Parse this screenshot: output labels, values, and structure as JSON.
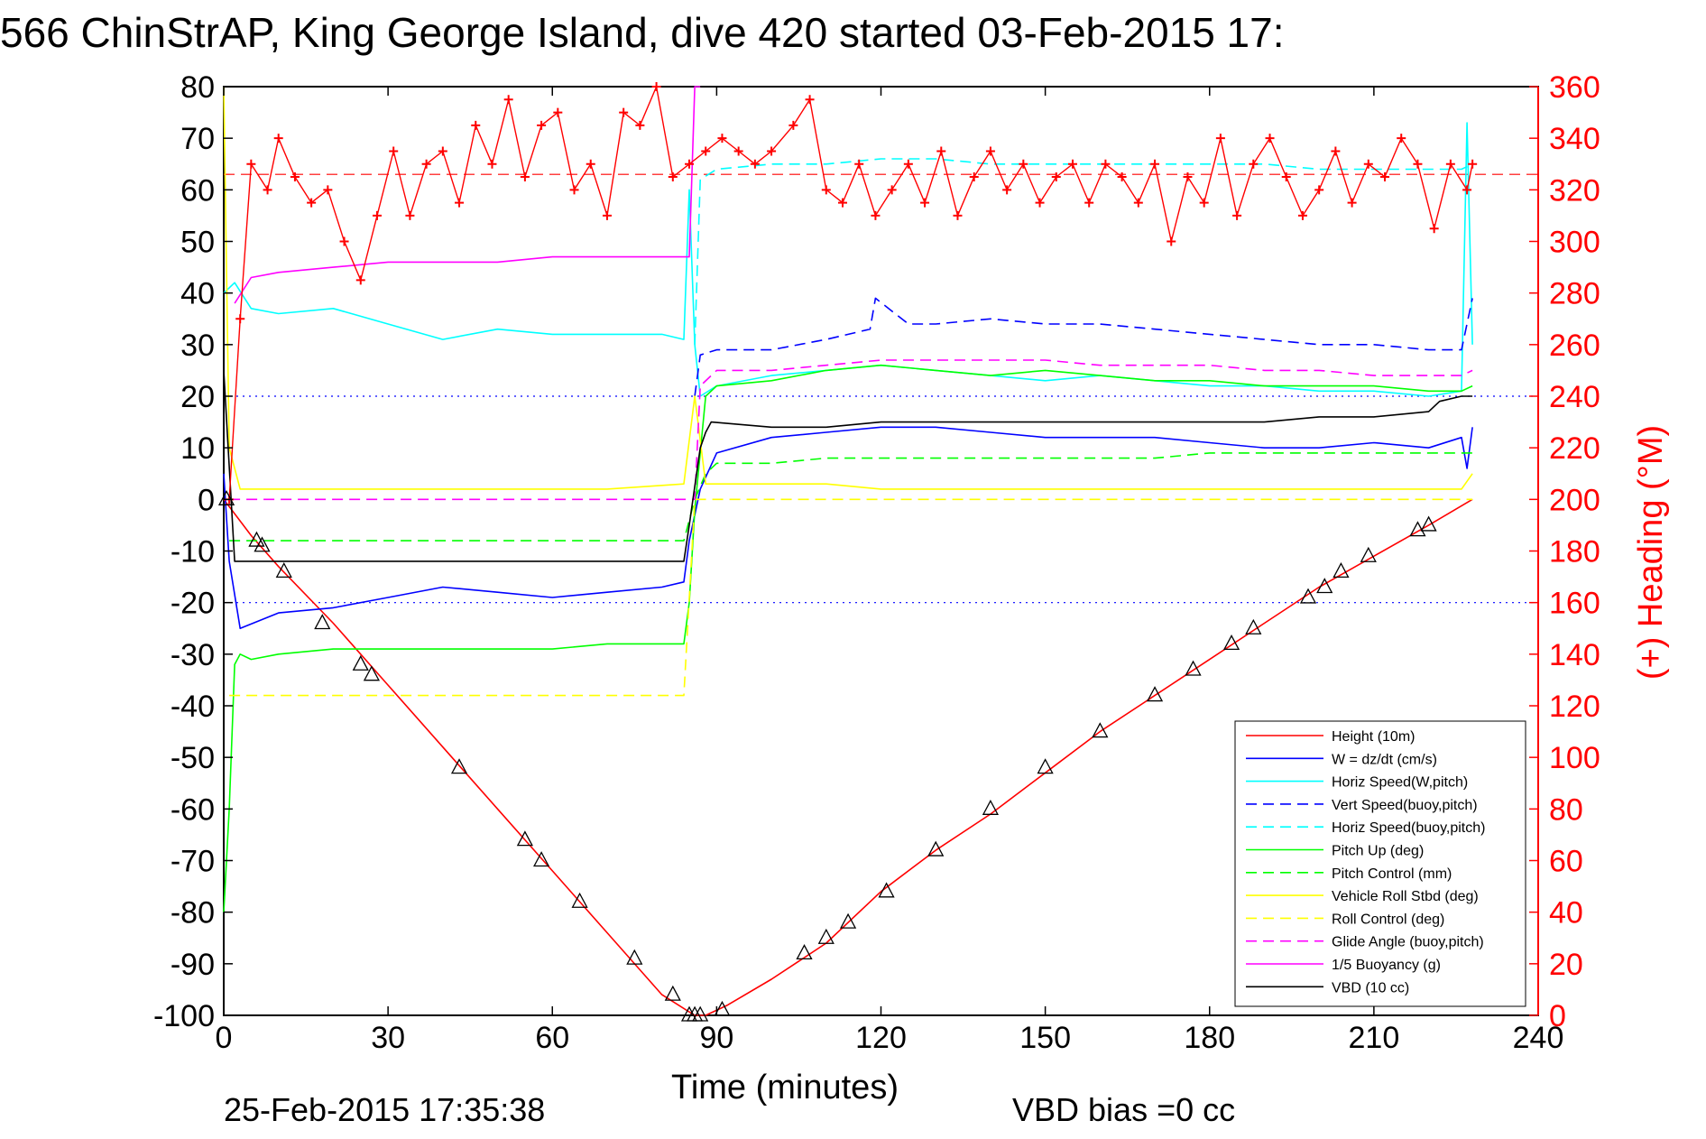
{
  "chart_data": {
    "type": "line",
    "title": "566 ChinStrAP, King George Island, dive 420 started 03-Feb-2015 17:",
    "xlabel": "Time (minutes)",
    "ylabel": "",
    "y2label": "(+) Heading (°M)",
    "footer_left": "25-Feb-2015 17:35:38",
    "footer_right": "VBD bias =0 cc",
    "xlim": [
      0,
      240
    ],
    "ylim": [
      -100,
      80
    ],
    "y2lim": [
      0,
      360
    ],
    "xticks": [
      "0",
      "30",
      "60",
      "90",
      "120",
      "150",
      "180",
      "210",
      "240"
    ],
    "yticks": [
      "80",
      "70",
      "60",
      "50",
      "40",
      "30",
      "20",
      "10",
      "0",
      "-10",
      "-20",
      "-30",
      "-40",
      "-50",
      "-60",
      "-70",
      "-80",
      "-90",
      "-100"
    ],
    "y2ticks": [
      "360",
      "340",
      "320",
      "300",
      "280",
      "260",
      "240",
      "220",
      "200",
      "180",
      "160",
      "140",
      "120",
      "100",
      "80",
      "60",
      "40",
      "20",
      "0"
    ],
    "legend_position": "bottom-right",
    "colors": {
      "height": "#ff0000",
      "w": "#0000ff",
      "horiz_w": "#00ffff",
      "vert_buoy": "#0000ff",
      "horiz_buoy": "#00ffff",
      "pitch": "#00ff00",
      "pitch_ctrl": "#00ff00",
      "roll": "#ffff00",
      "roll_ctrl": "#ffff00",
      "glide": "#ff00ff",
      "buoyancy": "#ff00ff",
      "vbd": "#000000",
      "heading": "#ff0000",
      "axis": "#000000",
      "axis2": "#ff0000"
    },
    "series": [
      {
        "name": "Height (10m)",
        "color": "#ff0000",
        "dash": "none",
        "x": [
          0,
          5,
          10,
          20,
          30,
          40,
          50,
          60,
          70,
          80,
          86,
          88,
          92,
          100,
          110,
          120,
          130,
          140,
          150,
          160,
          170,
          180,
          190,
          200,
          210,
          220,
          228
        ],
        "y": [
          0,
          -7,
          -13,
          -24,
          -36,
          -48,
          -60,
          -72,
          -84,
          -96,
          -100,
          -100,
          -98,
          -93,
          -86,
          -76,
          -68,
          -61,
          -53,
          -45,
          -38,
          -31,
          -24,
          -17,
          -11,
          -5,
          0
        ]
      },
      {
        "name": "W = dz/dt (cm/s)",
        "color": "#0000ff",
        "dash": "none",
        "x": [
          0,
          1,
          3,
          10,
          20,
          30,
          40,
          50,
          60,
          70,
          80,
          84,
          85,
          87,
          90,
          100,
          110,
          120,
          130,
          140,
          150,
          160,
          170,
          180,
          190,
          200,
          210,
          220,
          226,
          227,
          228
        ],
        "y": [
          5,
          -12,
          -25,
          -22,
          -21,
          -19,
          -17,
          -18,
          -19,
          -18,
          -17,
          -16,
          -8,
          2,
          9,
          12,
          13,
          14,
          14,
          13,
          12,
          12,
          12,
          11,
          10,
          10,
          11,
          10,
          12,
          6,
          14
        ]
      },
      {
        "name": "Horiz Speed(W,pitch)",
        "color": "#00ffff",
        "dash": "none",
        "x": [
          0,
          2,
          5,
          10,
          20,
          30,
          40,
          50,
          60,
          70,
          80,
          84,
          85,
          86,
          87,
          90,
          100,
          110,
          120,
          130,
          140,
          150,
          160,
          170,
          180,
          190,
          200,
          210,
          220,
          226,
          227,
          228
        ],
        "y": [
          40,
          42,
          37,
          36,
          37,
          34,
          31,
          33,
          32,
          32,
          32,
          31,
          60,
          30,
          20,
          22,
          24,
          25,
          26,
          25,
          24,
          23,
          24,
          23,
          22,
          22,
          21,
          21,
          20,
          21,
          73,
          30
        ]
      },
      {
        "name": "Vert Speed(buoy,pitch)",
        "color": "#0000ff",
        "dash": "dash",
        "x": [
          86,
          87,
          90,
          100,
          110,
          118,
          119,
          125,
          130,
          140,
          150,
          160,
          170,
          180,
          190,
          200,
          210,
          220,
          226,
          228
        ],
        "y": [
          20,
          28,
          29,
          29,
          31,
          33,
          39,
          34,
          34,
          35,
          34,
          34,
          33,
          32,
          31,
          30,
          30,
          29,
          29,
          39
        ]
      },
      {
        "name": "Horiz Speed(buoy,pitch)",
        "color": "#00ffff",
        "dash": "dash",
        "x": [
          86,
          87,
          90,
          100,
          110,
          120,
          130,
          140,
          150,
          160,
          170,
          180,
          190,
          200,
          210,
          220,
          226,
          228
        ],
        "y": [
          30,
          62,
          64,
          65,
          65,
          66,
          66,
          65,
          65,
          65,
          65,
          65,
          65,
          64,
          64,
          64,
          64,
          65
        ]
      },
      {
        "name": "Pitch Up (deg)",
        "color": "#00ff00",
        "dash": "none",
        "x": [
          0,
          1,
          2,
          3,
          5,
          10,
          20,
          30,
          40,
          50,
          60,
          70,
          80,
          84,
          85,
          86,
          88,
          90,
          100,
          110,
          120,
          130,
          140,
          150,
          160,
          170,
          180,
          190,
          200,
          210,
          220,
          226,
          228
        ],
        "y": [
          -80,
          -60,
          -32,
          -30,
          -31,
          -30,
          -29,
          -29,
          -29,
          -29,
          -29,
          -28,
          -28,
          -28,
          -20,
          -2,
          20,
          22,
          23,
          25,
          26,
          25,
          24,
          25,
          24,
          23,
          23,
          22,
          22,
          22,
          21,
          21,
          22
        ]
      },
      {
        "name": "Pitch Control (mm)",
        "color": "#00ff00",
        "dash": "dash",
        "x": [
          1,
          5,
          30,
          60,
          84,
          86,
          88,
          90,
          100,
          110,
          120,
          130,
          140,
          150,
          160,
          170,
          180,
          190,
          200,
          210,
          220,
          226,
          228
        ],
        "y": [
          -8,
          -8,
          -8,
          -8,
          -8,
          0,
          5,
          7,
          7,
          8,
          8,
          8,
          8,
          8,
          8,
          8,
          9,
          9,
          9,
          9,
          9,
          9,
          9
        ]
      },
      {
        "name": "Vehicle Roll Stbd (deg)",
        "color": "#ffff00",
        "dash": "none",
        "x": [
          0,
          1,
          3,
          10,
          30,
          50,
          70,
          84,
          86,
          88,
          90,
          100,
          110,
          120,
          130,
          140,
          150,
          160,
          170,
          180,
          190,
          200,
          210,
          220,
          226,
          228
        ],
        "y": [
          80,
          10,
          2,
          2,
          2,
          2,
          2,
          3,
          20,
          3,
          3,
          3,
          3,
          2,
          2,
          2,
          2,
          2,
          2,
          2,
          2,
          2,
          2,
          2,
          2,
          5
        ]
      },
      {
        "name": "Roll Control (deg)",
        "color": "#ffff00",
        "dash": "dash",
        "x": [
          1,
          2,
          5,
          30,
          60,
          84,
          86,
          88,
          90,
          110,
          150,
          200,
          226,
          228
        ],
        "y": [
          -38,
          -38,
          -38,
          -38,
          -38,
          -38,
          0,
          0,
          0,
          0,
          0,
          0,
          0,
          0
        ]
      },
      {
        "name": "Glide Angle (buoy,pitch)",
        "color": "#ff00ff",
        "dash": "dash",
        "x": [
          1,
          86,
          87,
          90,
          100,
          110,
          120,
          130,
          140,
          150,
          160,
          170,
          180,
          190,
          200,
          210,
          220,
          226,
          228
        ],
        "y": [
          0,
          0,
          22,
          25,
          25,
          26,
          27,
          27,
          27,
          27,
          26,
          26,
          26,
          25,
          25,
          24,
          24,
          24,
          25
        ]
      },
      {
        "name": "1/5 Buoyancy (g)",
        "color": "#ff00ff",
        "dash": "none",
        "x": [
          2,
          5,
          10,
          20,
          30,
          40,
          50,
          60,
          70,
          80,
          84,
          85,
          86,
          87
        ],
        "y": [
          38,
          43,
          44,
          45,
          46,
          46,
          46,
          47,
          47,
          47,
          47,
          47,
          80,
          80
        ]
      },
      {
        "name": "VBD (10 cc)",
        "color": "#000000",
        "dash": "none",
        "x": [
          0,
          2,
          5,
          30,
          60,
          84,
          85,
          87,
          88,
          89,
          100,
          110,
          120,
          130,
          140,
          150,
          160,
          170,
          180,
          190,
          200,
          210,
          220,
          222,
          226,
          228
        ],
        "y": [
          25,
          -12,
          -12,
          -12,
          -12,
          -12,
          -5,
          10,
          13,
          15,
          14,
          14,
          15,
          15,
          15,
          15,
          15,
          15,
          15,
          15,
          16,
          16,
          17,
          19,
          20,
          20
        ]
      }
    ],
    "heading": {
      "name": "Heading (+)",
      "color": "#ff0000",
      "axis": "right",
      "x": [
        1,
        3,
        5,
        8,
        10,
        13,
        16,
        19,
        22,
        25,
        28,
        31,
        34,
        37,
        40,
        43,
        46,
        49,
        52,
        55,
        58,
        61,
        64,
        67,
        70,
        73,
        76,
        79,
        82,
        85,
        88,
        91,
        94,
        97,
        100,
        104,
        107,
        110,
        113,
        116,
        119,
        122,
        125,
        128,
        131,
        134,
        137,
        140,
        143,
        146,
        149,
        152,
        155,
        158,
        161,
        164,
        167,
        170,
        173,
        176,
        179,
        182,
        185,
        188,
        191,
        194,
        197,
        200,
        203,
        206,
        209,
        212,
        215,
        218,
        221,
        224,
        227,
        228
      ],
      "y": [
        200,
        270,
        330,
        320,
        340,
        325,
        315,
        320,
        300,
        285,
        310,
        335,
        310,
        330,
        335,
        315,
        345,
        330,
        355,
        325,
        345,
        350,
        320,
        330,
        310,
        350,
        345,
        360,
        325,
        330,
        335,
        340,
        335,
        330,
        335,
        345,
        355,
        320,
        315,
        330,
        310,
        320,
        330,
        315,
        335,
        310,
        325,
        335,
        320,
        330,
        315,
        325,
        330,
        315,
        330,
        325,
        315,
        330,
        300,
        325,
        315,
        340,
        310,
        330,
        340,
        325,
        310,
        320,
        335,
        315,
        330,
        325,
        340,
        330,
        305,
        330,
        320,
        330
      ]
    },
    "heading_ref": {
      "value": 326,
      "axis": "right",
      "color": "#ff0000",
      "dash": "dash"
    },
    "ref_lines": [
      {
        "y": 20,
        "color": "#0000ff",
        "dash": "dot"
      },
      {
        "y": -20,
        "color": "#0000ff",
        "dash": "dot"
      }
    ],
    "markers": {
      "x": [
        0.5,
        6,
        7,
        11,
        18,
        25,
        27,
        43,
        55,
        58,
        65,
        75,
        82,
        85,
        86,
        87,
        91,
        106,
        110,
        114,
        121,
        130,
        140,
        150,
        160,
        170,
        177,
        184,
        188,
        198,
        201,
        204,
        209,
        218,
        220
      ],
      "y": [
        0,
        -8,
        -9,
        -14,
        -24,
        -32,
        -34,
        -52,
        -66,
        -70,
        -78,
        -89,
        -96,
        -100,
        -100,
        -100,
        -99,
        -88,
        -85,
        -82,
        -76,
        -68,
        -60,
        -52,
        -45,
        -38,
        -33,
        -28,
        -25,
        -19,
        -17,
        -14,
        -11,
        -6,
        -5
      ]
    },
    "legend": [
      {
        "label": "Height (10m)",
        "color": "#ff0000",
        "dash": "none"
      },
      {
        "label": "W = dz/dt (cm/s)",
        "color": "#0000ff",
        "dash": "none"
      },
      {
        "label": "Horiz Speed(W,pitch)",
        "color": "#00ffff",
        "dash": "none"
      },
      {
        "label": "Vert Speed(buoy,pitch)",
        "color": "#0000ff",
        "dash": "dash"
      },
      {
        "label": "Horiz Speed(buoy,pitch)",
        "color": "#00ffff",
        "dash": "dash"
      },
      {
        "label": "Pitch Up (deg)",
        "color": "#00ff00",
        "dash": "none"
      },
      {
        "label": "Pitch Control (mm)",
        "color": "#00ff00",
        "dash": "dash"
      },
      {
        "label": "Vehicle Roll Stbd (deg)",
        "color": "#ffff00",
        "dash": "none"
      },
      {
        "label": "Roll Control (deg)",
        "color": "#ffff00",
        "dash": "dash"
      },
      {
        "label": "Glide Angle (buoy,pitch)",
        "color": "#ff00ff",
        "dash": "dash"
      },
      {
        "label": "1/5 Buoyancy (g)",
        "color": "#ff00ff",
        "dash": "none"
      },
      {
        "label": "VBD (10 cc)",
        "color": "#000000",
        "dash": "none"
      }
    ]
  }
}
